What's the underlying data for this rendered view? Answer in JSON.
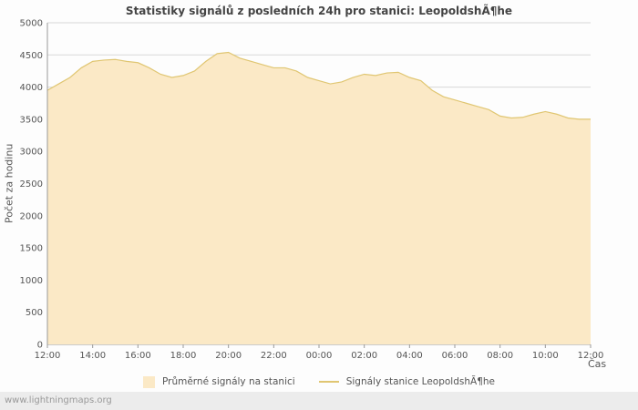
{
  "page": {
    "footer_watermark": "www.lightningmaps.org"
  },
  "chart_data": {
    "type": "area",
    "title": "Statistiky signálů z posledních 24h pro stanici: LeopoldshÃ¶he",
    "ylabel": "Počet za hodinu",
    "xlabel": "Čas",
    "ylim": [
      0,
      5000
    ],
    "ytick_step": 500,
    "grid": true,
    "legend_position": "bottom",
    "x_tick_labels": [
      "12:00",
      "14:00",
      "16:00",
      "18:00",
      "20:00",
      "22:00",
      "00:00",
      "02:00",
      "04:00",
      "06:00",
      "08:00",
      "10:00",
      "12:00"
    ],
    "x": [
      "12:00",
      "12:30",
      "13:00",
      "13:30",
      "14:00",
      "14:30",
      "15:00",
      "15:30",
      "16:00",
      "16:30",
      "17:00",
      "17:30",
      "18:00",
      "18:30",
      "19:00",
      "19:30",
      "20:00",
      "20:30",
      "21:00",
      "21:30",
      "22:00",
      "22:30",
      "23:00",
      "23:30",
      "00:00",
      "00:30",
      "01:00",
      "01:30",
      "02:00",
      "02:30",
      "03:00",
      "03:30",
      "04:00",
      "04:30",
      "05:00",
      "05:30",
      "06:00",
      "06:30",
      "07:00",
      "07:30",
      "08:00",
      "08:30",
      "09:00",
      "09:30",
      "10:00",
      "10:30",
      "11:00",
      "11:30",
      "12:00"
    ],
    "series": [
      {
        "name": "Průměrné signály na stanici",
        "type": "area",
        "color": "#fbe9c6",
        "values": [
          3950,
          4050,
          4150,
          4300,
          4400,
          4420,
          4430,
          4400,
          4380,
          4300,
          4200,
          4150,
          4180,
          4250,
          4400,
          4520,
          4540,
          4450,
          4400,
          4350,
          4300,
          4300,
          4250,
          4150,
          4100,
          4050,
          4080,
          4150,
          4200,
          4180,
          4220,
          4230,
          4150,
          4100,
          3950,
          3850,
          3800,
          3750,
          3700,
          3650,
          3550,
          3520,
          3530,
          3580,
          3620,
          3580,
          3520,
          3500,
          3500
        ]
      },
      {
        "name": "Signály stanice LeopoldshÃ¶he",
        "type": "line",
        "color": "#e0c672",
        "values": [
          3950,
          4050,
          4150,
          4300,
          4400,
          4420,
          4430,
          4400,
          4380,
          4300,
          4200,
          4150,
          4180,
          4250,
          4400,
          4520,
          4540,
          4450,
          4400,
          4350,
          4300,
          4300,
          4250,
          4150,
          4100,
          4050,
          4080,
          4150,
          4200,
          4180,
          4220,
          4230,
          4150,
          4100,
          3950,
          3850,
          3800,
          3750,
          3700,
          3650,
          3550,
          3520,
          3530,
          3580,
          3620,
          3580,
          3520,
          3500,
          3500
        ]
      }
    ]
  }
}
